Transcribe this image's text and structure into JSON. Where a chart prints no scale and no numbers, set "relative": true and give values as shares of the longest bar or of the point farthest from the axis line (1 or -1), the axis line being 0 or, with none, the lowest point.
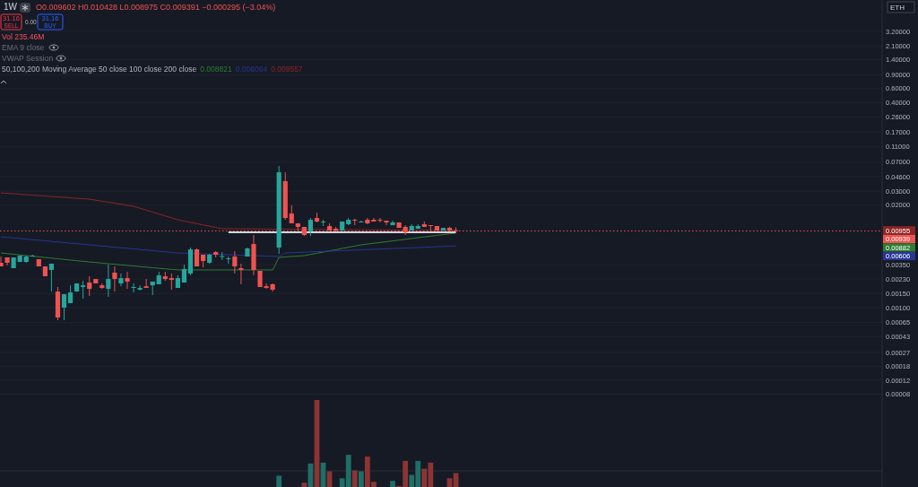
{
  "chart_data": [
    {
      "type": "candlestick",
      "title": "1W",
      "categories": [
        null,
        null,
        null,
        null,
        null,
        null,
        null,
        null,
        null,
        null,
        null,
        null,
        null,
        null,
        null,
        null,
        null,
        null,
        null,
        null,
        null,
        null,
        null,
        null,
        null,
        null,
        null,
        null,
        null,
        null,
        null,
        null,
        null,
        null,
        null,
        null,
        null,
        null,
        null,
        null,
        null,
        null,
        null,
        null,
        null,
        null,
        null,
        null,
        null,
        null,
        null,
        null,
        null,
        null,
        null,
        null,
        null,
        null,
        null,
        null,
        null,
        null,
        null,
        null,
        null,
        null,
        null,
        null,
        null,
        null,
        null,
        null,
        null
      ],
      "ohlc": [
        [
          0.00371,
          0.00445,
          0.00334,
          0.00334
        ],
        [
          0.00434,
          0.00434,
          0.00343,
          0.00371
        ],
        [
          0.00317,
          0.00434,
          0.00317,
          0.00434
        ],
        [
          0.0038,
          0.00457,
          0.0038,
          0.00457
        ],
        [
          0.0038,
          0.00457,
          0.00371,
          0.00445
        ],
        [
          0.00445,
          0.00469,
          0.00445,
          0.00457
        ],
        [
          0.00412,
          0.00412,
          0.00334,
          0.00334
        ],
        [
          0.00334,
          0.00334,
          0.0025,
          0.0025
        ],
        [
          0.00301,
          0.00361,
          0.0016,
          0.00361
        ],
        [
          0.0016,
          0.00183,
          0.000693,
          0.00075
        ],
        [
          0.001,
          0.00148,
          0.000693,
          0.00148
        ],
        [
          0.00114,
          0.00192,
          0.00114,
          0.00156
        ],
        [
          0.0016,
          0.00203,
          0.0016,
          0.00203
        ],
        [
          0.00183,
          0.00219,
          0.0013,
          0.00192
        ],
        [
          0.00208,
          0.0025,
          0.00141,
          0.00173
        ],
        [
          0.00231,
          0.00231,
          0.00203,
          0.00203
        ],
        [
          0.00192,
          0.00203,
          0.00173,
          0.00178
        ],
        [
          0.00173,
          0.00352,
          0.00137,
          0.00231
        ],
        [
          0.00278,
          0.00334,
          0.0016,
          0.00231
        ],
        [
          0.00203,
          0.00271,
          0.00187,
          0.00237
        ],
        [
          0.00237,
          0.00285,
          0.00173,
          0.00214
        ],
        [
          0.00178,
          0.00203,
          0.00156,
          0.00183
        ],
        [
          0.00169,
          0.00192,
          0.00165,
          0.00178
        ],
        [
          0.00187,
          0.00231,
          0.00178,
          0.00178
        ],
        [
          0.00192,
          0.00214,
          0.00144,
          0.00214
        ],
        [
          0.00198,
          0.00285,
          0.00198,
          0.00257
        ],
        [
          0.0025,
          0.00285,
          0.00219,
          0.00231
        ],
        [
          0.00237,
          0.00271,
          0.00169,
          0.00225
        ],
        [
          0.00178,
          0.00257,
          0.00178,
          0.00237
        ],
        [
          0.00208,
          0.00352,
          0.00208,
          0.00309
        ],
        [
          0.00271,
          0.00578,
          0.00257,
          0.00549
        ],
        [
          0.00549,
          0.00564,
          0.00334,
          0.00334
        ],
        [
          0.00469,
          0.00469,
          0.00325,
          0.00391
        ],
        [
          0.00371,
          0.00481,
          0.00361,
          0.00469
        ],
        [
          0.00507,
          0.00521,
          0.00434,
          0.00469
        ],
        [
          0.0044,
          0.00507,
          0.00401,
          0.0045
        ],
        [
          0.00412,
          0.00445,
          0.00361,
          0.00422
        ],
        [
          0.00445,
          0.00521,
          0.00271,
          0.00334
        ],
        [
          0.00317,
          0.00361,
          0.00198,
          0.00301
        ],
        [
          0.00445,
          0.00578,
          0.00445,
          0.00564
        ],
        [
          0.00642,
          0.00835,
          0.00257,
          0.00301
        ],
        [
          0.00293,
          0.00293,
          0.00183,
          0.00183
        ],
        [
          0.00187,
          0.00203,
          0.00173,
          0.00178
        ],
        [
          0.00198,
          0.00203,
          0.0016,
          0.00169
        ],
        [
          0.00578,
          0.0627,
          0.00481,
          0.0522
        ],
        [
          0.0402,
          0.0522,
          0.01302,
          0.01373
        ],
        [
          0.01565,
          0.0198,
          0.01173,
          0.01173
        ],
        [
          0.01173,
          0.01173,
          0.00927,
          0.01057
        ],
        [
          0.01057,
          0.01057,
          0.00813,
          0.00835
        ],
        [
          0.00927,
          0.01373,
          0.00813,
          0.01302
        ],
        [
          0.01373,
          0.016,
          0.01205,
          0.01237
        ],
        [
          0.0122,
          0.01302,
          0.01085,
          0.01237
        ],
        [
          0.01085,
          0.01173,
          0.00951,
          0.00951
        ],
        [
          0.01003,
          0.01057,
          0.00927,
          0.00951
        ],
        [
          0.00951,
          0.01237,
          0.00951,
          0.01237
        ],
        [
          0.01143,
          0.01373,
          0.01113,
          0.01302
        ],
        [
          0.01302,
          0.01337,
          0.01113,
          0.01269
        ],
        [
          0.0122,
          0.01269,
          0.01205,
          0.01237
        ],
        [
          0.01302,
          0.01373,
          0.01143,
          0.01173
        ],
        [
          0.01302,
          0.01373,
          0.01237,
          0.01237
        ],
        [
          0.01302,
          0.01373,
          0.01205,
          0.01269
        ],
        [
          0.01269,
          0.01269,
          0.01113,
          0.01205
        ],
        [
          0.01113,
          0.01269,
          0.01113,
          0.01205
        ],
        [
          0.01205,
          0.01205,
          0.01029,
          0.01029
        ],
        [
          0.01057,
          0.01113,
          0.00835,
          0.00903
        ],
        [
          0.00951,
          0.01143,
          0.00951,
          0.01085
        ],
        [
          0.01003,
          0.01143,
          0.01003,
          0.01085
        ],
        [
          0.01143,
          0.01237,
          0.01057,
          0.01057
        ],
        [
          0.01113,
          0.01113,
          0.00951,
          0.01099
        ],
        [
          0.01085,
          0.01085,
          0.00951,
          0.00951
        ],
        [
          0.00951,
          0.01029,
          0.00951,
          0.01029
        ],
        [
          0.01029,
          0.01057,
          0.00927,
          0.00951
        ],
        [
          0.009602,
          0.010428,
          0.008975,
          0.009391
        ]
      ],
      "colors": [
        "#ef5350",
        "#ef5350",
        "#26a69a",
        "#26a69a",
        "#26a69a",
        "#26a69a",
        "#ef5350",
        "#ef5350",
        "#26a69a",
        "#ef5350",
        "#26a69a",
        "#26a69a",
        "#26a69a",
        "#26a69a",
        "#ef5350",
        "#ef5350",
        "#ef5350",
        "#26a69a",
        "#ef5350",
        "#26a69a",
        "#ef5350",
        "#26a69a",
        "#26a69a",
        "#ef5350",
        "#26a69a",
        "#26a69a",
        "#ef5350",
        "#ef5350",
        "#26a69a",
        "#26a69a",
        "#26a69a",
        "#ef5350",
        "#ef5350",
        "#26a69a",
        "#ef5350",
        "#26a69a",
        "#26a69a",
        "#ef5350",
        "#ef5350",
        "#26a69a",
        "#ef5350",
        "#ef5350",
        "#ef5350",
        "#ef5350",
        "#26a69a",
        "#ef5350",
        "#ef5350",
        "#ef5350",
        "#ef5350",
        "#26a69a",
        "#ef5350",
        "#26a69a",
        "#ef5350",
        "#ef5350",
        "#26a69a",
        "#26a69a",
        "#ef5350",
        "#26a69a",
        "#ef5350",
        "#ef5350",
        "#ef5350",
        "#ef5350",
        "#26a69a",
        "#ef5350",
        "#ef5350",
        "#26a69a",
        "#26a69a",
        "#ef5350",
        "#ef5350",
        "#ef5350",
        "#26a69a",
        "#ef5350",
        "#ef5350"
      ],
      "series": [
        {
          "type": "line",
          "color": "#2e7d32",
          "values": [
            0.00494,
            0.00485,
            0.00476,
            0.00467,
            0.00458,
            0.00449,
            0.00441,
            0.00433,
            0.00425,
            0.00417,
            0.00409,
            0.00402,
            0.00394,
            0.00387,
            0.0038,
            0.00374,
            0.00367,
            0.00361,
            0.00355,
            0.00349,
            0.00344,
            0.00338,
            0.00332,
            0.00327,
            0.00321,
            0.00316,
            0.00311,
            0.00306,
            0.00301,
            0.00301,
            0.00301,
            0.00301,
            0.00301,
            0.00301,
            0.00301,
            0.00301,
            0.00301,
            0.00301,
            0.00301,
            0.00301,
            0.00301,
            0.00301,
            0.00301,
            0.00301,
            0.00434,
            0.0044,
            0.00446,
            0.00451,
            0.00457,
            0.00473,
            0.0049,
            0.00507,
            0.00525,
            0.00544,
            0.00564,
            0.00584,
            0.00604,
            0.00626,
            0.00641,
            0.00656,
            0.00671,
            0.00687,
            0.00703,
            0.0072,
            0.00737,
            0.00754,
            0.00772,
            0.00789,
            0.00807,
            0.00825,
            0.00844,
            0.00863,
            0.00882
          ]
        },
        {
          "type": "line",
          "color": "#283593",
          "values": [
            0.00792,
            0.00779,
            0.00766,
            0.00753,
            0.00741,
            0.00728,
            0.00716,
            0.00704,
            0.00693,
            0.00681,
            0.0067,
            0.00659,
            0.00648,
            0.00637,
            0.00626,
            0.00616,
            0.00605,
            0.00595,
            0.00585,
            0.00575,
            0.00566,
            0.00556,
            0.00547,
            0.00538,
            0.00529,
            0.0052,
            0.00511,
            0.00502,
            0.00494,
            0.00491,
            0.00488,
            0.00484,
            0.00481,
            0.00478,
            0.00475,
            0.00472,
            0.00469,
            0.00466,
            0.00463,
            0.0046,
            0.00457,
            0.00454,
            0.00451,
            0.00448,
            0.00445,
            0.00494,
            0.00498,
            0.00501,
            0.00505,
            0.00509,
            0.00513,
            0.00517,
            0.00521,
            0.00525,
            0.00529,
            0.00533,
            0.00537,
            0.00541,
            0.00545,
            0.00549,
            0.00553,
            0.00558,
            0.00562,
            0.00566,
            0.0057,
            0.00575,
            0.00579,
            0.00584,
            0.00588,
            0.00593,
            0.00597,
            0.00602,
            0.00606
          ]
        },
        {
          "type": "line",
          "color": "#8e2424",
          "values": [
            0.0286,
            0.0282,
            0.0279,
            0.0275,
            0.0271,
            0.0268,
            0.0264,
            0.0261,
            0.0257,
            0.0254,
            0.0251,
            0.0247,
            0.0244,
            0.0241,
            0.0238,
            0.0231,
            0.0224,
            0.0218,
            0.0211,
            0.0205,
            0.0199,
            0.0193,
            0.01825,
            0.01725,
            0.01631,
            0.01542,
            0.01458,
            0.01378,
            0.01302,
            0.01254,
            0.01208,
            0.01164,
            0.01122,
            0.01081,
            0.01041,
            0.01003,
            0.01002,
            0.01,
            0.00999,
            0.00998,
            0.00996,
            0.00995,
            0.00994,
            0.00992,
            0.00991,
            0.0099,
            0.00988,
            0.00987,
            0.00986,
            0.00984,
            0.00983,
            0.00982,
            0.0098,
            0.00979,
            0.00978,
            0.00976,
            0.00975,
            0.00974,
            0.00972,
            0.00971,
            0.0097,
            0.00968,
            0.00967,
            0.00966,
            0.00965,
            0.00963,
            0.00962,
            0.00961,
            0.0096,
            0.00958,
            0.00957,
            0.00956,
            0.00955
          ]
        },
        {
          "type": "line",
          "color": "#d1d4dc",
          "values": [
            null,
            null,
            null,
            null,
            null,
            null,
            null,
            null,
            null,
            null,
            null,
            null,
            null,
            null,
            null,
            null,
            null,
            null,
            null,
            null,
            null,
            null,
            null,
            null,
            null,
            null,
            null,
            null,
            null,
            null,
            null,
            null,
            null,
            null,
            null,
            null,
            0.00903,
            0.00903,
            0.00903,
            0.00903,
            0.00903,
            0.00903,
            0.00903,
            0.00903,
            0.00903,
            0.00903,
            0.00903,
            0.00903,
            0.00903,
            0.00903,
            0.00903,
            0.00903,
            0.00903,
            0.00903,
            0.00903,
            0.00903,
            0.00903,
            0.00903,
            0.00903,
            0.00903,
            0.00903,
            0.00903,
            0.00903,
            0.00903,
            0.00903,
            0.00903,
            0.00903,
            0.00903,
            0.00903,
            0.00903,
            0.00903,
            0.00903,
            0.00903
          ]
        }
      ],
      "log": true,
      "ylim": [
        8.5e-06,
        8
      ],
      "yticks": [
        {
          "value": 3.2,
          "label": "3.20000"
        },
        {
          "value": 2.1,
          "label": "2.10000"
        },
        {
          "value": 1.4,
          "label": "1.40000"
        },
        {
          "value": 0.9,
          "label": "0.90000"
        },
        {
          "value": 0.6,
          "label": "0.60000"
        },
        {
          "value": 0.4,
          "label": "0.40000"
        },
        {
          "value": 0.26,
          "label": "0.26000"
        },
        {
          "value": 0.17,
          "label": "0.17000"
        },
        {
          "value": 0.11,
          "label": "0.11000"
        },
        {
          "value": 0.07,
          "label": "0.07000"
        },
        {
          "value": 0.046,
          "label": "0.04600"
        },
        {
          "value": 0.03,
          "label": "0.03000"
        },
        {
          "value": 0.02,
          "label": "0.02000"
        },
        {
          "value": 0.0035,
          "label": "0.00350"
        },
        {
          "value": 0.0023,
          "label": "0.00230"
        },
        {
          "value": 0.0015,
          "label": "0.00150"
        },
        {
          "value": 0.001,
          "label": "0.00100"
        },
        {
          "value": 0.00065,
          "label": "0.00065"
        },
        {
          "value": 0.00043,
          "label": "0.00043"
        },
        {
          "value": 0.00027,
          "label": "0.00027"
        },
        {
          "value": 0.00018,
          "label": "0.00018"
        },
        {
          "value": 0.00012,
          "label": "0.00012"
        },
        {
          "value": 8e-05,
          "label": "0.00008"
        }
      ],
      "tick_labels": "y",
      "grid": "y",
      "ref_lines": [
        {
          "axis": "y",
          "value": 0.009391,
          "color": "#ef5350",
          "line_style": "dotted"
        }
      ],
      "annotations": [
        "O0.009602 H0.010428 L0.008975 C0.009391 −0.000295 (−3.04%)",
        "31.16",
        "SELL",
        "0.00",
        "31.16",
        "BUY",
        "Vol 235.46M",
        "EMA 9 close",
        "VWAP Session",
        "50,100,200 Moving Average 50 close 100 close 200 close",
        "ETH",
        "0.008821",
        "0.006064",
        "0.009557",
        "0.00955",
        "0.00939",
        "0.00882",
        "0.00606"
      ]
    },
    {
      "type": "bar",
      "relative": true,
      "categories": [
        null,
        null,
        null,
        null,
        null,
        null,
        null,
        null,
        null,
        null,
        null,
        null,
        null,
        null,
        null,
        null,
        null,
        null,
        null,
        null,
        null,
        null,
        null,
        null,
        null,
        null,
        null,
        null,
        null,
        null,
        null,
        null,
        null,
        null,
        null,
        null,
        null,
        null,
        null,
        null,
        null,
        null,
        null,
        null,
        null,
        null,
        null,
        null,
        null,
        null,
        null,
        null,
        null,
        null,
        null,
        null,
        null,
        null,
        null,
        null,
        null,
        null,
        null,
        null,
        null,
        null,
        null,
        null,
        null,
        null,
        null,
        null,
        null
      ],
      "values": [
        null,
        null,
        null,
        null,
        null,
        null,
        null,
        null,
        null,
        null,
        null,
        null,
        null,
        null,
        null,
        null,
        null,
        null,
        null,
        null,
        null,
        null,
        null,
        null,
        null,
        null,
        null,
        null,
        null,
        null,
        null,
        null,
        null,
        null,
        null,
        null,
        null,
        null,
        null,
        null,
        null,
        null,
        null,
        null,
        0.13,
        null,
        null,
        null,
        0.05,
        0.27,
        1,
        0.28,
        0.18,
        null,
        0.1,
        0.37,
        0.19,
        0.18,
        0.35,
        0.06,
        null,
        null,
        0.07,
        0.01,
        0.3,
        0.14,
        0.3,
        0.21,
        0.28,
        null,
        null,
        0.1,
        0.16
      ],
      "colors": [
        null,
        null,
        null,
        null,
        null,
        null,
        null,
        null,
        null,
        null,
        null,
        null,
        null,
        null,
        null,
        null,
        null,
        null,
        null,
        null,
        null,
        null,
        null,
        null,
        null,
        null,
        null,
        null,
        null,
        null,
        null,
        null,
        null,
        null,
        null,
        null,
        null,
        null,
        null,
        null,
        null,
        null,
        null,
        null,
        "#1f6e68",
        null,
        null,
        null,
        "#8c3434",
        "#1f6e68",
        "#8c3434",
        "#1f6e68",
        "#8c3434",
        null,
        "#1f6e68",
        "#1f6e68",
        "#8c3434",
        "#1f6e68",
        "#8c3434",
        "#8c3434",
        null,
        null,
        "#1f6e68",
        "#8c3434",
        "#8c3434",
        "#1f6e68",
        "#1f6e68",
        "#8c3434",
        "#8c3434",
        null,
        null,
        "#8c3434",
        "#8c3434"
      ]
    }
  ]
}
